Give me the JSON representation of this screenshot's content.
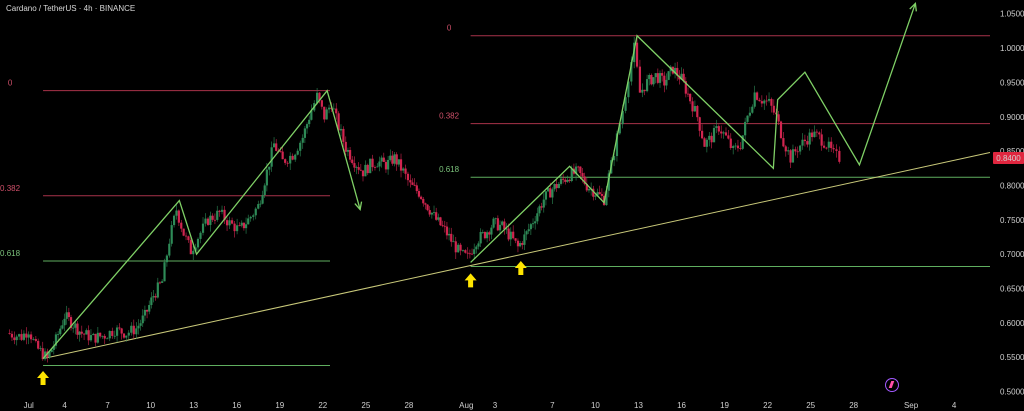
{
  "header": {
    "title": "Cardano / TetherUS · 4h · BINANCE"
  },
  "colors": {
    "up": "#2e8b57",
    "down": "#d1254f",
    "wave": "#7fd066",
    "trend": "#c9c97a",
    "fib_red": "#a8324a",
    "fib_green": "#5fae5f",
    "arrow": "#ffe500",
    "price_badge": "#e0263f"
  },
  "chart_data": {
    "type": "candlestick",
    "title": "Cardano / TetherUS · 4h · BINANCE",
    "y_ticks": [
      "1.0500",
      "1.0000",
      "0.9500",
      "0.9000",
      "0.8500",
      "0.8000",
      "0.7500",
      "0.7000",
      "0.6500",
      "0.6000",
      "0.5500",
      "0.5000"
    ],
    "x_ticks": [
      {
        "label": "Jul",
        "x": 0.5
      },
      {
        "label": "4",
        "x": 3
      },
      {
        "label": "7",
        "x": 6
      },
      {
        "label": "10",
        "x": 9
      },
      {
        "label": "13",
        "x": 12
      },
      {
        "label": "16",
        "x": 15
      },
      {
        "label": "19",
        "x": 18
      },
      {
        "label": "22",
        "x": 21
      },
      {
        "label": "25",
        "x": 24
      },
      {
        "label": "28",
        "x": 27
      },
      {
        "label": "Aug",
        "x": 31
      },
      {
        "label": "3",
        "x": 33
      },
      {
        "label": "7",
        "x": 37
      },
      {
        "label": "10",
        "x": 40
      },
      {
        "label": "13",
        "x": 43
      },
      {
        "label": "16",
        "x": 46
      },
      {
        "label": "19",
        "x": 49
      },
      {
        "label": "22",
        "x": 52
      },
      {
        "label": "25",
        "x": 55
      },
      {
        "label": "28",
        "x": 58
      },
      {
        "label": "Sep",
        "x": 62
      },
      {
        "label": "4",
        "x": 65
      }
    ],
    "ylim": [
      0.495,
      1.07
    ],
    "xlim": [
      -1.5,
      67.5
    ],
    "current_price": "0.8400",
    "price_path": [
      [
        -1,
        0.585
      ],
      [
        0,
        0.58
      ],
      [
        0.5,
        0.59
      ],
      [
        1,
        0.565
      ],
      [
        1.8,
        0.548
      ],
      [
        2.4,
        0.575
      ],
      [
        3,
        0.61
      ],
      [
        3.6,
        0.598
      ],
      [
        4.2,
        0.585
      ],
      [
        5,
        0.578
      ],
      [
        5.8,
        0.582
      ],
      [
        6.5,
        0.59
      ],
      [
        7.3,
        0.585
      ],
      [
        8,
        0.592
      ],
      [
        8.6,
        0.61
      ],
      [
        9.2,
        0.64
      ],
      [
        9.8,
        0.66
      ],
      [
        10.3,
        0.72
      ],
      [
        10.8,
        0.765
      ],
      [
        11.3,
        0.73
      ],
      [
        11.8,
        0.705
      ],
      [
        12.3,
        0.725
      ],
      [
        13,
        0.75
      ],
      [
        13.8,
        0.76
      ],
      [
        14.5,
        0.745
      ],
      [
        15.2,
        0.735
      ],
      [
        15.8,
        0.75
      ],
      [
        16.5,
        0.77
      ],
      [
        17.1,
        0.82
      ],
      [
        17.6,
        0.86
      ],
      [
        18.2,
        0.835
      ],
      [
        18.9,
        0.845
      ],
      [
        19.6,
        0.87
      ],
      [
        20.2,
        0.91
      ],
      [
        20.6,
        0.93
      ],
      [
        21.1,
        0.9
      ],
      [
        21.6,
        0.92
      ],
      [
        22.1,
        0.885
      ],
      [
        22.6,
        0.855
      ],
      [
        23.2,
        0.835
      ],
      [
        23.8,
        0.82
      ],
      [
        24.3,
        0.83
      ],
      [
        24.8,
        0.835
      ],
      [
        25.4,
        0.83
      ],
      [
        26,
        0.84
      ],
      [
        26.6,
        0.82
      ],
      [
        27.1,
        0.8
      ],
      [
        27.7,
        0.79
      ],
      [
        28.3,
        0.77
      ],
      [
        28.9,
        0.75
      ],
      [
        29.5,
        0.735
      ],
      [
        30.1,
        0.715
      ],
      [
        30.6,
        0.7
      ],
      [
        31.1,
        0.695
      ],
      [
        31.7,
        0.72
      ],
      [
        32.3,
        0.73
      ],
      [
        32.9,
        0.745
      ],
      [
        33.5,
        0.74
      ],
      [
        34.1,
        0.725
      ],
      [
        34.6,
        0.71
      ],
      [
        35.2,
        0.73
      ],
      [
        35.8,
        0.755
      ],
      [
        36.4,
        0.78
      ],
      [
        37,
        0.795
      ],
      [
        37.6,
        0.805
      ],
      [
        38.2,
        0.815
      ],
      [
        38.8,
        0.82
      ],
      [
        39.4,
        0.8
      ],
      [
        40,
        0.79
      ],
      [
        40.6,
        0.78
      ],
      [
        41.1,
        0.83
      ],
      [
        41.5,
        0.87
      ],
      [
        41.9,
        0.91
      ],
      [
        42.3,
        0.96
      ],
      [
        42.7,
        1.0
      ],
      [
        43.1,
        0.935
      ],
      [
        43.6,
        0.95
      ],
      [
        44.2,
        0.96
      ],
      [
        44.8,
        0.95
      ],
      [
        45.4,
        0.97
      ],
      [
        46,
        0.955
      ],
      [
        46.6,
        0.925
      ],
      [
        47.1,
        0.9
      ],
      [
        47.6,
        0.86
      ],
      [
        48.1,
        0.87
      ],
      [
        48.6,
        0.885
      ],
      [
        49.1,
        0.87
      ],
      [
        49.6,
        0.85
      ],
      [
        50.1,
        0.86
      ],
      [
        50.6,
        0.9
      ],
      [
        51.1,
        0.935
      ],
      [
        51.6,
        0.925
      ],
      [
        52.1,
        0.92
      ],
      [
        52.6,
        0.9
      ],
      [
        53.1,
        0.865
      ],
      [
        53.6,
        0.84
      ],
      [
        54.1,
        0.855
      ],
      [
        54.6,
        0.865
      ],
      [
        55.1,
        0.875
      ],
      [
        55.6,
        0.87
      ],
      [
        56.1,
        0.86
      ],
      [
        56.6,
        0.845
      ],
      [
        57,
        0.84
      ]
    ],
    "waves": [
      {
        "name": "wave1",
        "points": [
          [
            1.5,
            0.548
          ],
          [
            11,
            0.778
          ],
          [
            12.2,
            0.7
          ],
          [
            21.3,
            0.938
          ],
          [
            23.6,
            0.765
          ]
        ]
      },
      {
        "name": "wave2",
        "points": [
          [
            31.3,
            0.688
          ],
          [
            38.2,
            0.828
          ],
          [
            40.6,
            0.775
          ],
          [
            42.9,
            1.018
          ],
          [
            52.4,
            0.825
          ],
          [
            52.7,
            0.925
          ],
          [
            54.6,
            0.965
          ],
          [
            58.4,
            0.83
          ],
          [
            62.3,
            1.065
          ]
        ]
      }
    ],
    "trendline": {
      "from": [
        1.5,
        0.548
      ],
      "to": [
        67.5,
        0.848
      ]
    },
    "fib_sets": [
      {
        "x_range": [
          1.5,
          21.5
        ],
        "levels": [
          {
            "label": "0",
            "price": 0.938,
            "color": "red"
          },
          {
            "label": "0.382",
            "price": 0.785,
            "color": "red"
          },
          {
            "label": "0.618",
            "price": 0.69,
            "color": "green"
          },
          {
            "label": "",
            "price": 0.538,
            "color": "green"
          }
        ],
        "label_x": -0.8
      },
      {
        "x_range": [
          31.3,
          67.5
        ],
        "levels": [
          {
            "label": "0",
            "price": 1.018,
            "color": "red"
          },
          {
            "label": "0.382",
            "price": 0.89,
            "color": "red"
          },
          {
            "label": "0.618",
            "price": 0.812,
            "color": "green"
          },
          {
            "label": "",
            "price": 0.682,
            "color": "green"
          }
        ],
        "label_x": 29.8
      }
    ],
    "arrows": [
      [
        1.5,
        0.53
      ],
      [
        31.3,
        0.672
      ],
      [
        34.8,
        0.69
      ]
    ]
  }
}
